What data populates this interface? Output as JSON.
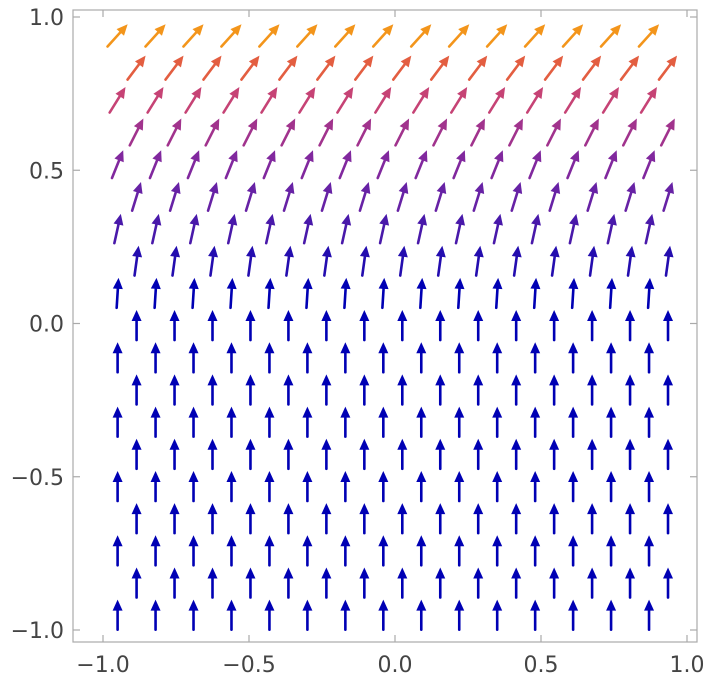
{
  "chart_data": {
    "type": "vector-field",
    "title": "",
    "xlabel": "",
    "ylabel": "",
    "xlim": [
      -1,
      1
    ],
    "ylim": [
      -1,
      1
    ],
    "grid": false,
    "legend": "none",
    "x_ticks": [
      {
        "value": -1.0,
        "label": "−1.0"
      },
      {
        "value": -0.5,
        "label": "−0.5"
      },
      {
        "value": 0.0,
        "label": "0.0"
      },
      {
        "value": 0.5,
        "label": "0.5"
      },
      {
        "value": 1.0,
        "label": "1.0"
      }
    ],
    "y_ticks": [
      {
        "value": -1.0,
        "label": "−1.0"
      },
      {
        "value": -0.5,
        "label": "−0.5"
      },
      {
        "value": 0.0,
        "label": "0.0"
      },
      {
        "value": 0.5,
        "label": "0.5"
      },
      {
        "value": 1.0,
        "label": "1.0"
      }
    ],
    "field": {
      "description_of_direction": "vectors point straight up for y <= 0 and tilt increasingly to the right as y increases toward 1",
      "grid_rows_y": [
        -0.95,
        -0.845,
        -0.74,
        -0.635,
        -0.53,
        -0.425,
        -0.32,
        -0.215,
        -0.11,
        -0.005,
        0.1,
        0.205,
        0.31,
        0.415,
        0.52,
        0.625,
        0.73,
        0.835,
        0.94
      ],
      "grid_cols_x_even_rows": [
        -0.95,
        -0.82,
        -0.69,
        -0.56,
        -0.43,
        -0.3,
        -0.17,
        -0.04,
        0.09,
        0.22,
        0.35,
        0.48,
        0.61,
        0.74,
        0.87
      ],
      "grid_cols_x_odd_rows": [
        -0.885,
        -0.755,
        -0.625,
        -0.495,
        -0.365,
        -0.235,
        -0.105,
        0.025,
        0.155,
        0.285,
        0.415,
        0.545,
        0.675,
        0.805,
        0.935
      ],
      "max_tilt_degrees": 45
    },
    "colors": {
      "low_magnitude": "#0000b4",
      "mid_low": "#5a1fa8",
      "mid": "#8b2a9c",
      "mid_high": "#c94473",
      "high": "#f06a2a",
      "highest": "#f5c00c"
    }
  }
}
